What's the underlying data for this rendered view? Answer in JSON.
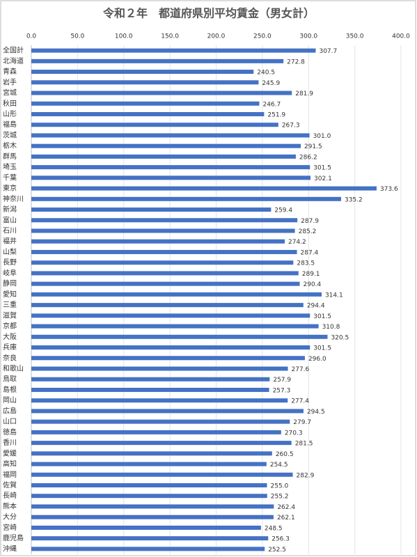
{
  "chart_data": {
    "type": "bar",
    "orientation": "horizontal",
    "title": "令和２年　都道府県別平均賃金（男女計）",
    "categories": [
      "全国計",
      "北海道",
      "青森",
      "岩手",
      "宮城",
      "秋田",
      "山形",
      "福島",
      "茨城",
      "栃木",
      "群馬",
      "埼玉",
      "千葉",
      "東京",
      "神奈川",
      "新潟",
      "富山",
      "石川",
      "福井",
      "山梨",
      "長野",
      "岐阜",
      "静岡",
      "愛知",
      "三重",
      "滋賀",
      "京都",
      "大阪",
      "兵庫",
      "奈良",
      "和歌山",
      "鳥取",
      "島根",
      "岡山",
      "広島",
      "山口",
      "徳島",
      "香川",
      "愛媛",
      "高知",
      "福岡",
      "佐賀",
      "長崎",
      "熊本",
      "大分",
      "宮崎",
      "鹿児島",
      "沖縄"
    ],
    "values": [
      307.7,
      272.8,
      240.5,
      245.9,
      281.9,
      246.7,
      251.9,
      267.3,
      301.0,
      291.5,
      286.2,
      301.5,
      302.1,
      373.6,
      335.2,
      259.4,
      287.9,
      285.2,
      274.2,
      287.4,
      283.5,
      289.1,
      290.4,
      314.1,
      294.4,
      301.5,
      310.8,
      320.5,
      301.5,
      296.0,
      277.6,
      257.9,
      257.3,
      277.4,
      294.5,
      279.7,
      270.3,
      281.5,
      260.5,
      254.5,
      282.9,
      255.0,
      255.2,
      262.4,
      262.1,
      248.5,
      256.3,
      252.5
    ],
    "value_labels": [
      "307.7",
      "272.8",
      "240.5",
      "245.9",
      "281.9",
      "246.7",
      "251.9",
      "267.3",
      "301.0",
      "291.5",
      "286.2",
      "301.5",
      "302.1",
      "373.6",
      "335.2",
      "259.4",
      "287.9",
      "285.2",
      "274.2",
      "287.4",
      "283.5",
      "289.1",
      "290.4",
      "314.1",
      "294.4",
      "301.5",
      "310.8",
      "320.5",
      "301.5",
      "296.0",
      "277.6",
      "257.9",
      "257.3",
      "277.4",
      "294.5",
      "279.7",
      "270.3",
      "281.5",
      "260.5",
      "254.5",
      "282.9",
      "255.0",
      "255.2",
      "262.4",
      "262.1",
      "248.5",
      "256.3",
      "252.5"
    ],
    "color": "#4472c4",
    "xlim": [
      0,
      400
    ],
    "xticks": [
      {
        "value": 0,
        "label": "0.0"
      },
      {
        "value": 50,
        "label": "50.0"
      },
      {
        "value": 100,
        "label": "100.0"
      },
      {
        "value": 150,
        "label": "150.0"
      },
      {
        "value": 200,
        "label": "200.0"
      },
      {
        "value": 250,
        "label": "250.0"
      },
      {
        "value": 300,
        "label": "300.0"
      },
      {
        "value": 350,
        "label": "350.0"
      },
      {
        "value": 400,
        "label": "400.0"
      }
    ],
    "grid": true
  }
}
